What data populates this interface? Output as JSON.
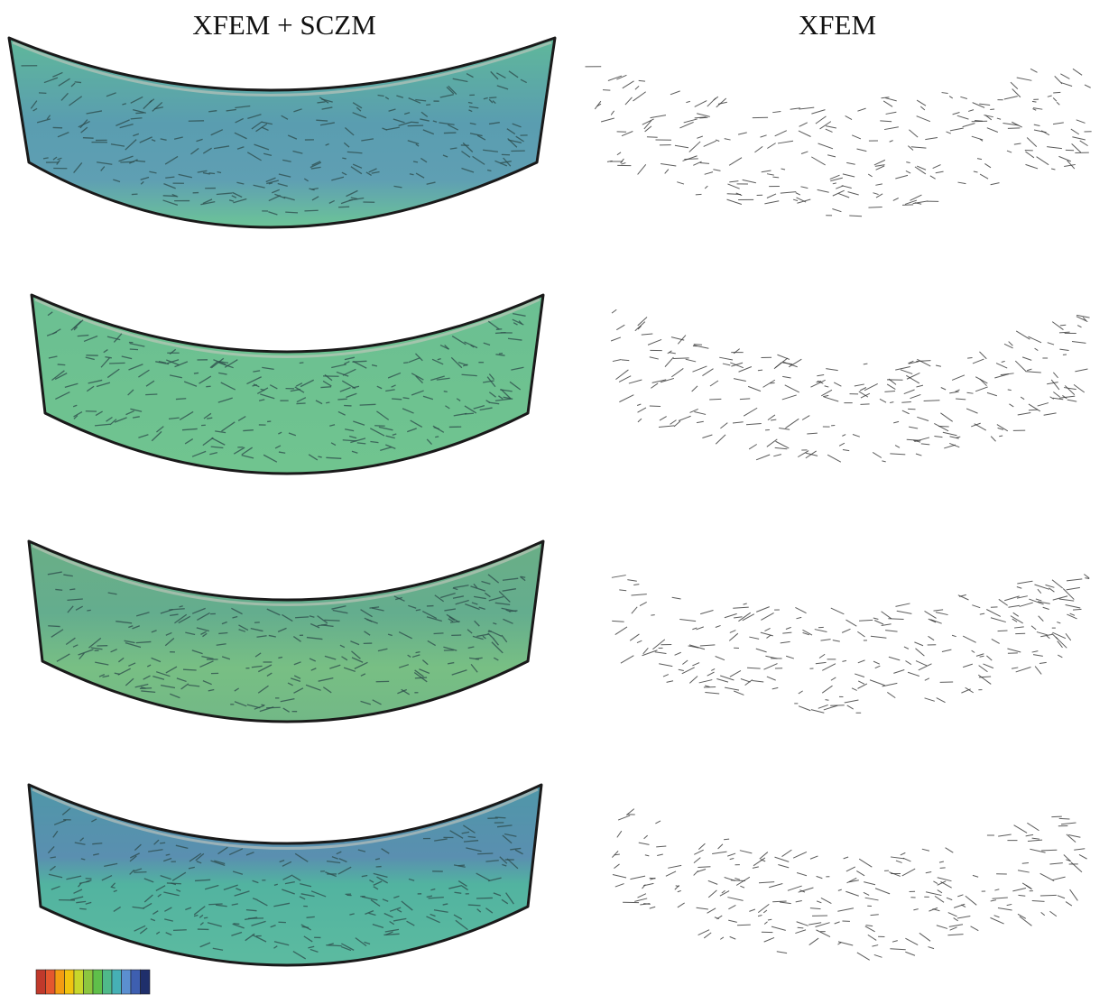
{
  "headers": {
    "left": "XFEM + SCZM",
    "right": "XFEM"
  }
}
